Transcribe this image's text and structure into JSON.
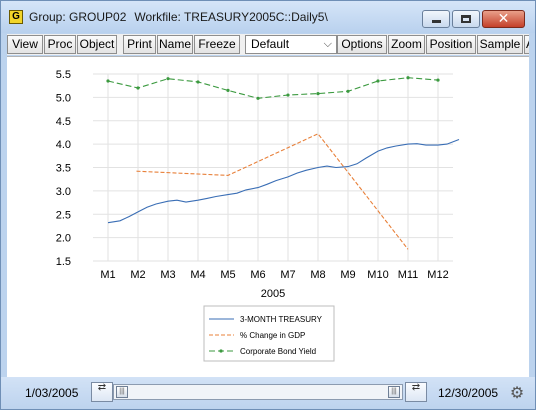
{
  "window": {
    "title_group": "Group: GROUP02",
    "title_workfile": "Workfile: TREASURY2005C::Daily5\\",
    "icon_letter": "G",
    "close_glyph": "✕"
  },
  "toolbar": {
    "buttons": [
      "View",
      "Proc",
      "Object",
      "Print",
      "Name",
      "Freeze",
      "Options",
      "Zoom",
      "Position",
      "Sample",
      "A"
    ],
    "dropdown_value": "Default"
  },
  "status": {
    "start_date": "1/03/2005",
    "end_date": "12/30/2005",
    "thumb_glyph": "|||"
  },
  "chart_data": {
    "type": "line",
    "xlabel": "2005",
    "x_tick_labels": [
      "M1",
      "M2",
      "M3",
      "M4",
      "M5",
      "M6",
      "M7",
      "M8",
      "M9",
      "M10",
      "M11",
      "M12"
    ],
    "ylim": [
      1.5,
      5.5
    ],
    "y_ticks": [
      "1.5",
      "2.0",
      "2.5",
      "3.0",
      "3.5",
      "4.0",
      "4.5",
      "5.0",
      "5.5"
    ],
    "grid": true,
    "legend_position": "bottom-center",
    "series": [
      {
        "name": "3-MONTH TREASURY",
        "color": "#3a6eb5",
        "style": "solid",
        "x": [
          1.0,
          1.4,
          1.7,
          2.0,
          2.3,
          2.6,
          3.0,
          3.3,
          3.6,
          4.0,
          4.3,
          4.6,
          5.0,
          5.3,
          5.6,
          6.0,
          6.3,
          6.6,
          7.0,
          7.3,
          7.6,
          8.0,
          8.3,
          8.6,
          9.0,
          9.3,
          9.6,
          10.0,
          10.3,
          10.6,
          11.0,
          11.3,
          11.6,
          12.0,
          12.3,
          12.7
        ],
        "y": [
          2.32,
          2.36,
          2.45,
          2.55,
          2.65,
          2.72,
          2.78,
          2.8,
          2.76,
          2.8,
          2.84,
          2.88,
          2.92,
          2.95,
          3.02,
          3.07,
          3.14,
          3.22,
          3.3,
          3.38,
          3.44,
          3.5,
          3.53,
          3.5,
          3.52,
          3.58,
          3.7,
          3.85,
          3.92,
          3.96,
          4.0,
          4.01,
          3.98,
          3.98,
          4.0,
          4.1
        ]
      },
      {
        "name": "% Change in GDP",
        "color": "#e8803a",
        "style": "dashed",
        "x": [
          1.95,
          5.0,
          8.0,
          11.0
        ],
        "y": [
          3.42,
          3.33,
          4.22,
          1.75
        ]
      },
      {
        "name": "Corporate Bond Yield",
        "color": "#3c9a40",
        "style": "dash-dot",
        "x": [
          1.0,
          2.0,
          3.0,
          4.0,
          5.0,
          6.0,
          7.0,
          8.0,
          9.0,
          10.0,
          11.0,
          12.0
        ],
        "y": [
          5.35,
          5.2,
          5.4,
          5.33,
          5.15,
          4.98,
          5.05,
          5.08,
          5.13,
          5.35,
          5.42,
          5.37
        ]
      }
    ]
  }
}
